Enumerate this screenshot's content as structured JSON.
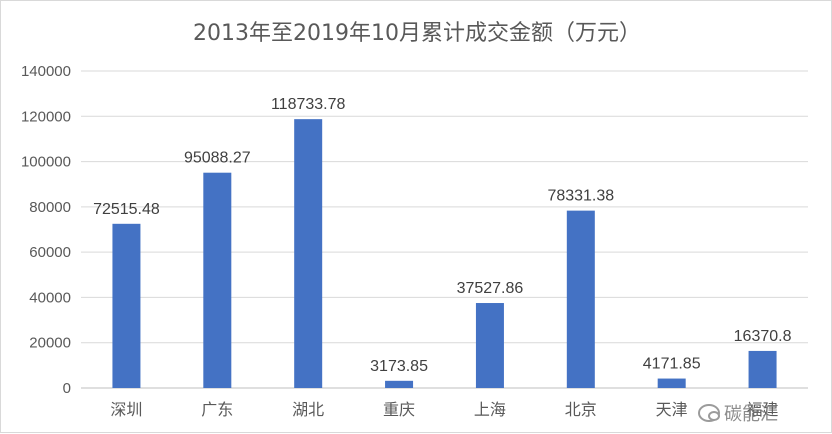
{
  "chart_data": {
    "type": "bar",
    "title": "2013年至2019年10月累计成交金额（万元）",
    "categories": [
      "深圳",
      "广东",
      "湖北",
      "重庆",
      "上海",
      "北京",
      "天津",
      "福建"
    ],
    "series": [
      {
        "values": [
          72515.48,
          95088.27,
          118733.78,
          3173.85,
          37527.86,
          78331.38,
          4171.85,
          16370.8
        ],
        "value_labels": [
          "72515.48",
          "95088.27",
          "118733.78",
          "3173.85",
          "37527.86",
          "78331.38",
          "4171.85",
          "16370.8"
        ],
        "color": "#4472C4"
      }
    ],
    "yticks": [
      "0",
      "20000",
      "40000",
      "60000",
      "80000",
      "100000",
      "120000",
      "140000"
    ],
    "ylim": [
      0,
      140000
    ],
    "xlabel": "",
    "ylabel": "",
    "grid": true,
    "legend": "none"
  },
  "watermark": {
    "text": "碳能汇",
    "icon": "wechat-icon"
  }
}
